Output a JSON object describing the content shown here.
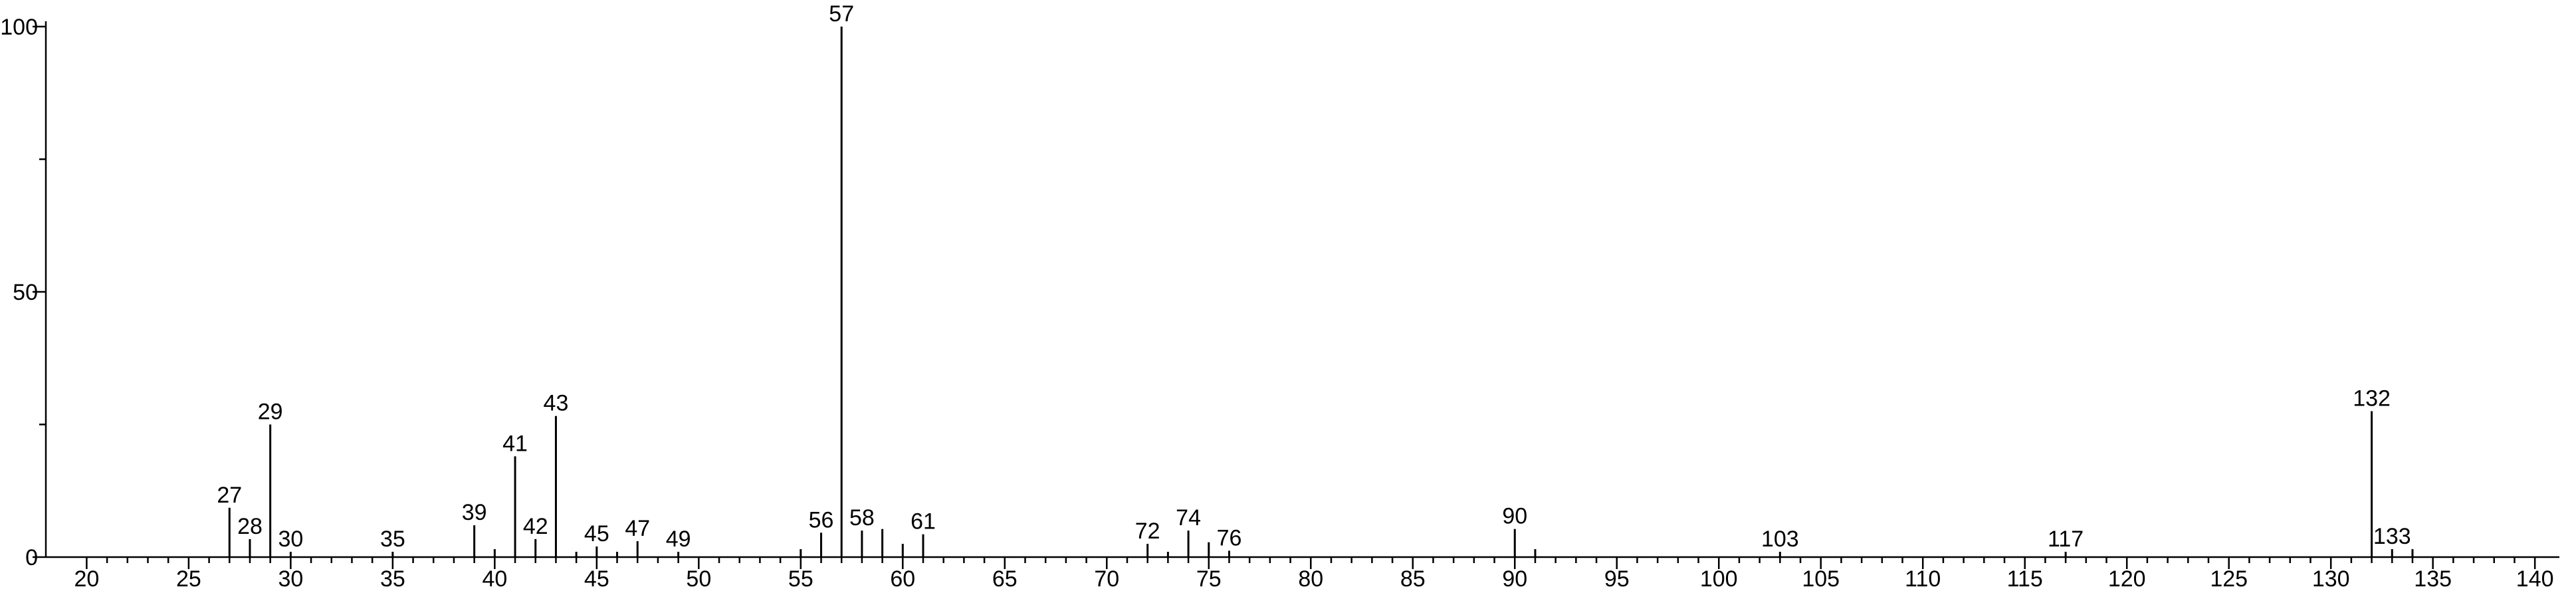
{
  "chart_data": {
    "type": "stem",
    "series": [
      {
        "show_labels": true,
        "color": "#000000",
        "x": [
          27,
          28,
          29,
          30,
          35,
          39,
          41,
          42,
          43,
          45,
          47,
          49,
          56,
          57,
          58,
          61,
          72,
          74,
          76,
          90,
          103,
          117,
          132,
          133
        ],
        "values": [
          9.3,
          3.4,
          25,
          1,
          1,
          6,
          19,
          3.4,
          26.6,
          2,
          3,
          1,
          4.6,
          100,
          5,
          4.3,
          2.5,
          5,
          1.2,
          5.3,
          1,
          1,
          27.5,
          1.5
        ]
      },
      {
        "show_labels": false,
        "color": "#000000",
        "x": [
          40,
          44,
          46,
          55,
          59,
          60,
          73,
          75,
          91,
          134
        ],
        "values": [
          1.5,
          1,
          1,
          1.5,
          5.3,
          2.5,
          1,
          2.8,
          1.5,
          1.5
        ]
      }
    ],
    "xlim": [
      18,
      141.2
    ],
    "xticks": [
      20,
      25,
      30,
      35,
      40,
      45,
      50,
      55,
      60,
      65,
      70,
      75,
      80,
      85,
      90,
      95,
      100,
      105,
      110,
      115,
      120,
      125,
      130,
      135,
      140
    ],
    "xminorticks": [
      21,
      22,
      23,
      24,
      26,
      27,
      28,
      29,
      31,
      32,
      33,
      34,
      36,
      37,
      38,
      39,
      41,
      42,
      43,
      44,
      46,
      47,
      48,
      49,
      51,
      52,
      53,
      54,
      56,
      57,
      58,
      59,
      61,
      62,
      63,
      64,
      66,
      67,
      68,
      69,
      71,
      72,
      73,
      74,
      76,
      77,
      78,
      79,
      81,
      82,
      83,
      84,
      86,
      87,
      88,
      89,
      91,
      92,
      93,
      94,
      96,
      97,
      98,
      99,
      101,
      102,
      103,
      104,
      106,
      107,
      108,
      109,
      111,
      112,
      113,
      114,
      116,
      117,
      118,
      119,
      121,
      122,
      123,
      124,
      126,
      127,
      128,
      129,
      131,
      132,
      133,
      134,
      136,
      137,
      138,
      139
    ],
    "ylim": [
      0,
      100
    ],
    "yticks": [
      0,
      50,
      100
    ],
    "yminorticks": [
      25,
      75
    ]
  }
}
